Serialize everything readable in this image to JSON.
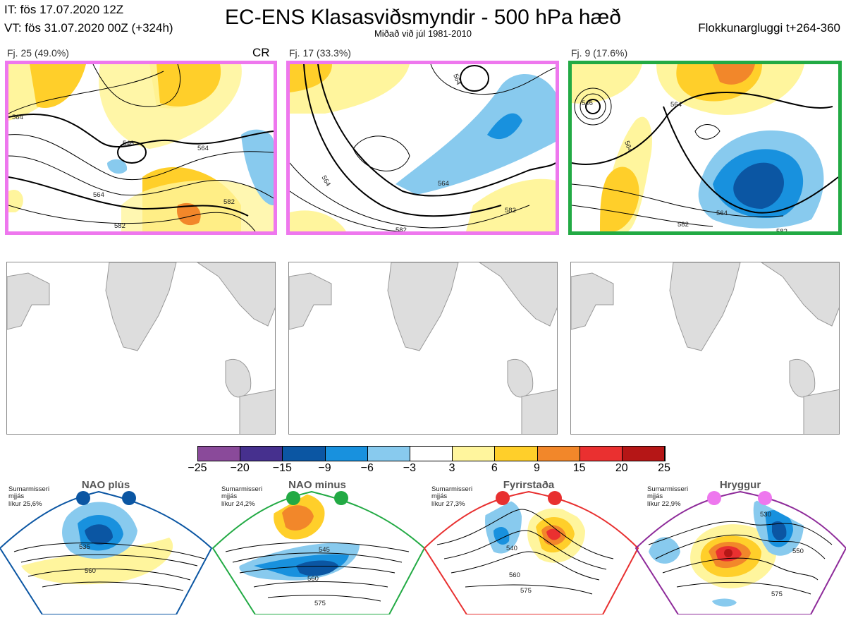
{
  "header": {
    "it_line": "IT: fös 17.07.2020 12Z",
    "vt_line": "VT: fös 31.07.2020 00Z  (+324h)",
    "title": "EC-ENS Klasasviðsmyndir - 500 hPa hæð",
    "subtitle": "Miðað við júl 1981-2010",
    "window": "Flokkunargluggi t+264-360"
  },
  "clusters": [
    {
      "label": "Fj. 25 (49.0%)",
      "tag": "CR",
      "frame_color": "#ee77ee",
      "contours": [
        "546",
        "564",
        "564",
        "564",
        "582",
        "582"
      ]
    },
    {
      "label": "Fj. 17 (33.3%)",
      "tag": "",
      "frame_color": "#ee77ee",
      "contours": [
        "564",
        "564",
        "564",
        "582",
        "582"
      ]
    },
    {
      "label": "Fj. 9 (17.6%)",
      "tag": "",
      "frame_color": "#22aa44",
      "contours": [
        "546",
        "564",
        "564",
        "564",
        "582",
        "582"
      ]
    }
  ],
  "colorbar": {
    "labels": [
      "−25",
      "−20",
      "−15",
      "−9",
      "−6",
      "−3",
      "3",
      "6",
      "9",
      "15",
      "20",
      "25"
    ],
    "colors": [
      "#8a4a9a",
      "#46308e",
      "#0b56a3",
      "#1891de",
      "#88caee",
      "#ffffff",
      "#fff59d",
      "#ffcf2a",
      "#f2872a",
      "#ea3030",
      "#b51616"
    ]
  },
  "regimes": [
    {
      "name": "NAO plús",
      "season": "Sumarmisseri",
      "mean": "mjjás",
      "prob": "líkur 25,6%",
      "color": "#0b56a3",
      "contours": [
        "535",
        "560"
      ]
    },
    {
      "name": "NAO mínus",
      "season": "Sumarmisseri",
      "mean": "mjjás",
      "prob": "líkur 24,2%",
      "color": "#22aa44",
      "contours": [
        "545",
        "560",
        "575"
      ]
    },
    {
      "name": "Fyrirstaða",
      "season": "Sumarmisseri",
      "mean": "mjjás",
      "prob": "líkur 27,3%",
      "color": "#e83030",
      "contours": [
        "540",
        "560",
        "575"
      ]
    },
    {
      "name": "Hryggur",
      "season": "Sumarmisseri",
      "mean": "mjjás",
      "prob": "líkur 22,9%",
      "color": "#ee77ee",
      "contours": [
        "530",
        "550",
        "575"
      ]
    }
  ]
}
